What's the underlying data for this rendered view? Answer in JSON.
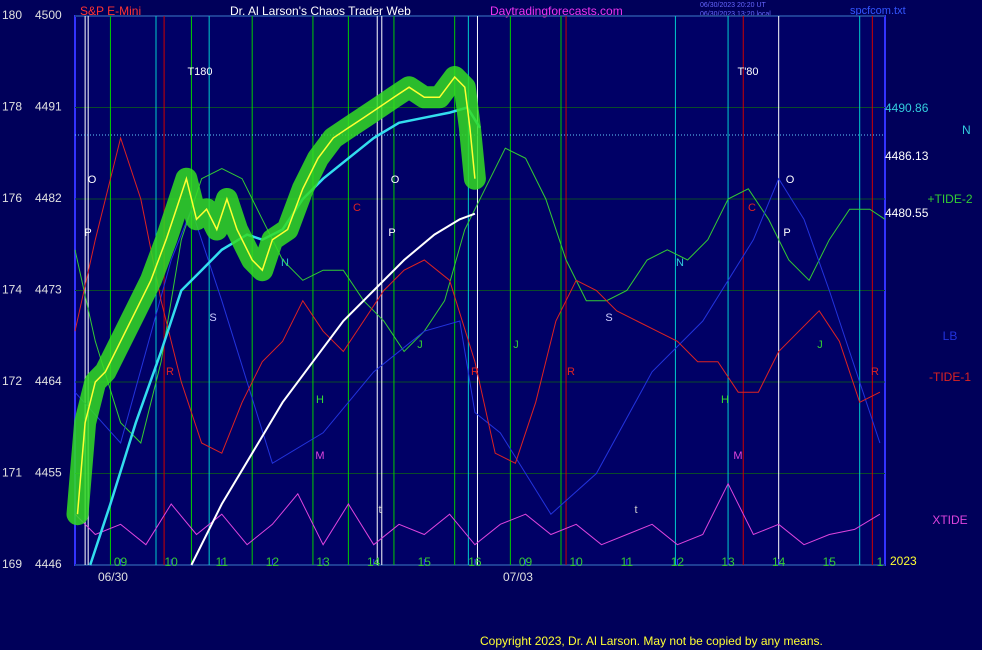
{
  "chart_data": {
    "type": "line",
    "title": "Dr. Al Larson's Chaos Trader Web",
    "instrument": "S&P E-Mini",
    "site": "Daytradingforecasts.com",
    "timestamps": [
      "06/30/2023 20:20 UT",
      "06/30/2023 13:20 local"
    ],
    "file": "spcfcom.txt",
    "corner_label": "N",
    "year": "2023",
    "copyright": "Copyright 2023, Dr. Al Larson. May not be copied by any means.",
    "xlim": [
      8.1,
      24.1
    ],
    "ylim": [
      4446,
      4500
    ],
    "yticks": [
      4446,
      4455,
      4464,
      4473,
      4482,
      4491,
      4500
    ],
    "scale2_labels": [
      "169",
      "171",
      "172",
      "174",
      "176",
      "178",
      "180"
    ],
    "xticks": [
      {
        "value": 9,
        "label": "09"
      },
      10,
      11,
      12,
      13,
      14,
      15,
      16,
      {
        "value": 17,
        "label": "09"
      },
      {
        "value": 18,
        "label": "10"
      },
      {
        "value": 19,
        "label": "11"
      },
      {
        "value": 20,
        "label": "12"
      },
      {
        "value": 21,
        "label": "13"
      },
      {
        "value": 22,
        "label": "14"
      },
      {
        "value": 23,
        "label": "15"
      },
      {
        "value": 24,
        "label": "1"
      }
    ],
    "dates": [
      {
        "value": 8.85,
        "label": "06/30"
      },
      {
        "value": 16.85,
        "label": "07/03"
      }
    ],
    "grid": true,
    "reference_line": 4488.3,
    "price_levels": [
      4490.86,
      4486.13,
      4480.55
    ],
    "vlines": [
      {
        "x": 8.3,
        "color": "#ffffff"
      },
      {
        "x": 8.36,
        "color": "#ffffff"
      },
      {
        "x": 8.8,
        "color": "#00cc00"
      },
      {
        "x": 9.7,
        "color": "#00cccc"
      },
      {
        "x": 9.86,
        "color": "#cc0000"
      },
      {
        "x": 10.4,
        "color": "#00cc00"
      },
      {
        "x": 10.75,
        "color": "#00cccc"
      },
      {
        "x": 11.6,
        "color": "#00cc00"
      },
      {
        "x": 12.8,
        "color": "#00cc00"
      },
      {
        "x": 13.5,
        "color": "#00cc00"
      },
      {
        "x": 14.07,
        "color": "#ffffff"
      },
      {
        "x": 14.16,
        "color": "#ffffff"
      },
      {
        "x": 14.4,
        "color": "#00cc00"
      },
      {
        "x": 15.6,
        "color": "#00cc00"
      },
      {
        "x": 15.87,
        "color": "#00cccc"
      },
      {
        "x": 16.05,
        "color": "#ffffff"
      },
      {
        "x": 16.7,
        "color": "#00cc00"
      },
      {
        "x": 17.7,
        "color": "#00cc00"
      },
      {
        "x": 17.8,
        "color": "#cc0000"
      },
      {
        "x": 19.96,
        "color": "#00cccc"
      },
      {
        "x": 21.0,
        "color": "#00cccc"
      },
      {
        "x": 21.3,
        "color": "#cc0000"
      },
      {
        "x": 22.0,
        "color": "#ffffff"
      },
      {
        "x": 23.6,
        "color": "#00cccc"
      },
      {
        "x": 23.85,
        "color": "#cc0000"
      }
    ],
    "annotations": [
      "T180",
      "T'80",
      "O",
      "O",
      "O",
      "P",
      "P",
      "P",
      "S",
      "S",
      "N",
      "N",
      "C",
      "C",
      "R",
      "R",
      "R",
      "R",
      "H",
      "H",
      "M",
      "M",
      "J",
      "J",
      "J",
      "t",
      "t"
    ],
    "series": [
      {
        "name": "+TIDE-2",
        "color": "#33cc33",
        "width": 1,
        "x": [
          8.1,
          8.5,
          9.0,
          9.4,
          9.8,
          10.2,
          10.6,
          11.0,
          11.4,
          11.8,
          12.2,
          12.6,
          13.0,
          13.4,
          13.8,
          14.2,
          14.6,
          15.0,
          15.4,
          15.8,
          16.2,
          16.6,
          17.0,
          17.4,
          17.8,
          18.2,
          18.6,
          19.0,
          19.4,
          19.8,
          20.2,
          20.6,
          21.0,
          21.4,
          21.8,
          22.2,
          22.6,
          23.0,
          23.4,
          23.8,
          24.1
        ],
        "values": [
          4477,
          4468,
          4460,
          4458,
          4466,
          4478,
          4484,
          4485,
          4484,
          4480,
          4476,
          4474,
          4475,
          4475,
          4472,
          4470,
          4467,
          4469,
          4472,
          4479,
          4483,
          4487,
          4486,
          4482,
          4476,
          4472,
          4472,
          4473,
          4476,
          4477,
          4476,
          4478,
          4482,
          4483,
          4480,
          4476,
          4474,
          4478,
          4481,
          4481,
          4480
        ]
      },
      {
        "name": "LB",
        "color": "#2233dd",
        "width": 1,
        "x": [
          8.1,
          9.0,
          10.0,
          10.4,
          11.0,
          12.0,
          13.0,
          14.0,
          15.0,
          15.7,
          16.0,
          16.5,
          17.5,
          18.4,
          19.5,
          20.5,
          21.5,
          22.0,
          22.5,
          23.0,
          24.0
        ],
        "values": [
          4463,
          4458,
          4476,
          4481,
          4472,
          4456,
          4459,
          4465,
          4469,
          4470,
          4461,
          4459,
          4451,
          4455,
          4465,
          4470,
          4478,
          4484,
          4480,
          4473,
          4458
        ]
      },
      {
        "name": "-TIDE-1",
        "color": "#dd2222",
        "width": 1,
        "x": [
          8.1,
          8.5,
          9.0,
          9.4,
          9.8,
          10.2,
          10.6,
          11.0,
          11.4,
          11.8,
          12.2,
          12.6,
          13.0,
          13.4,
          13.8,
          14.2,
          14.6,
          15.0,
          15.5,
          16.0,
          16.4,
          16.8,
          17.2,
          17.6,
          18.0,
          18.4,
          18.8,
          19.2,
          19.6,
          20.0,
          20.4,
          20.8,
          21.2,
          21.6,
          22.0,
          22.4,
          22.8,
          23.2,
          23.6,
          24.0
        ],
        "values": [
          4469,
          4478,
          4488,
          4482,
          4472,
          4464,
          4458,
          4457,
          4462,
          4466,
          4468,
          4472,
          4469,
          4467,
          4470,
          4473,
          4475,
          4476,
          4474,
          4466,
          4457,
          4456,
          4462,
          4470,
          4474,
          4473,
          4471,
          4470,
          4469,
          4468,
          4466,
          4466,
          4463,
          4463,
          4467,
          4469,
          4471,
          4468,
          4462,
          4463
        ]
      },
      {
        "name": "XTIDE",
        "color": "#dd44dd",
        "width": 1,
        "x": [
          8.1,
          8.5,
          9.0,
          9.5,
          10.0,
          10.5,
          11.0,
          11.5,
          12.0,
          12.5,
          13.0,
          13.5,
          14.0,
          14.5,
          15.0,
          15.5,
          16.0,
          16.5,
          17.0,
          17.5,
          18.0,
          18.5,
          19.0,
          19.5,
          20.0,
          20.5,
          21.0,
          21.5,
          22.0,
          22.5,
          23.0,
          23.5,
          24.0
        ],
        "values": [
          4451,
          4449,
          4450,
          4448,
          4452,
          4449,
          4451,
          4448,
          4450,
          4453,
          4448,
          4452,
          4448,
          4450,
          4449,
          4451,
          4448,
          4450,
          4451,
          4449,
          4450,
          4448,
          4449,
          4450,
          4448,
          4449,
          4454,
          4449,
          4450,
          4448,
          4449,
          4449.5,
          4451
        ]
      },
      {
        "color": "#ffffff",
        "width": 2,
        "x": [
          10.4,
          11.0,
          11.6,
          12.2,
          12.8,
          13.4,
          14.0,
          14.6,
          15.2,
          15.7,
          16.0
        ],
        "values": [
          4446,
          4452,
          4457,
          4462,
          4466,
          4470,
          4473,
          4476,
          4478.5,
          4480,
          4480.55
        ]
      },
      {
        "color": "#33ddee",
        "width": 2.5,
        "x": [
          8.4,
          8.8,
          9.3,
          9.8,
          10.2,
          10.6,
          11.0,
          11.5,
          11.8,
          12.2,
          12.6,
          13.0,
          13.5,
          14.0,
          14.5,
          15.0,
          15.5,
          15.85,
          16.1
        ],
        "values": [
          4446,
          4452,
          4460,
          4467,
          4473,
          4475,
          4477,
          4478.5,
          4478,
          4479,
          4482,
          4484,
          4486,
          4488,
          4489.5,
          4490,
          4490.5,
          4491,
          4489
        ]
      },
      {
        "color": "#ffff33",
        "width": 1.5,
        "halo": "#33dd22",
        "x": [
          8.15,
          8.3,
          8.5,
          8.7,
          9.0,
          9.3,
          9.6,
          9.9,
          10.1,
          10.3,
          10.5,
          10.7,
          10.9,
          11.1,
          11.3,
          11.6,
          11.8,
          12.0,
          12.3,
          12.6,
          12.9,
          13.2,
          13.5,
          13.8,
          14.1,
          14.4,
          14.7,
          15.0,
          15.3,
          15.6,
          15.8,
          15.9,
          16.0
        ],
        "values": [
          4451,
          4460,
          4464,
          4465,
          4468,
          4471,
          4474,
          4478,
          4481,
          4484,
          4480,
          4481,
          4479,
          4482,
          4479,
          4476,
          4475,
          4478,
          4479,
          4483,
          4486,
          4488,
          4489,
          4490,
          4491,
          4492,
          4493,
          4492,
          4492,
          4494,
          4493,
          4489,
          4484
        ]
      }
    ]
  }
}
